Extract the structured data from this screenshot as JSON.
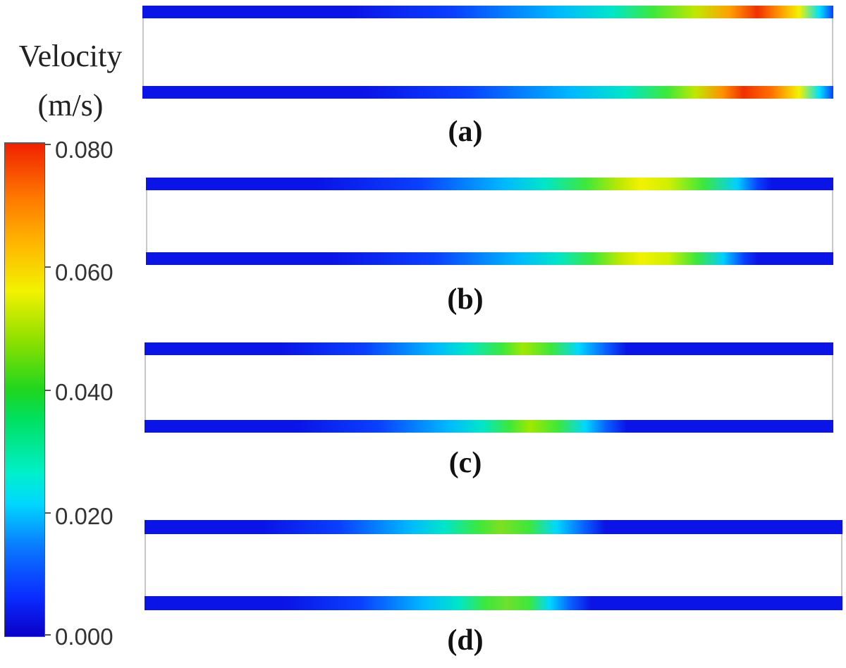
{
  "legend": {
    "title_line1": "Velocity",
    "title_line2": "(m/s)",
    "ticks": [
      "0.080",
      "0.060",
      "0.040",
      "0.020",
      "0.000"
    ]
  },
  "panels": [
    {
      "label": "(a)",
      "peak_velocity": 0.08
    },
    {
      "label": "(b)",
      "peak_velocity": 0.065
    },
    {
      "label": "(c)",
      "peak_velocity": 0.05
    },
    {
      "label": "(d)",
      "peak_velocity": 0.04
    }
  ]
}
